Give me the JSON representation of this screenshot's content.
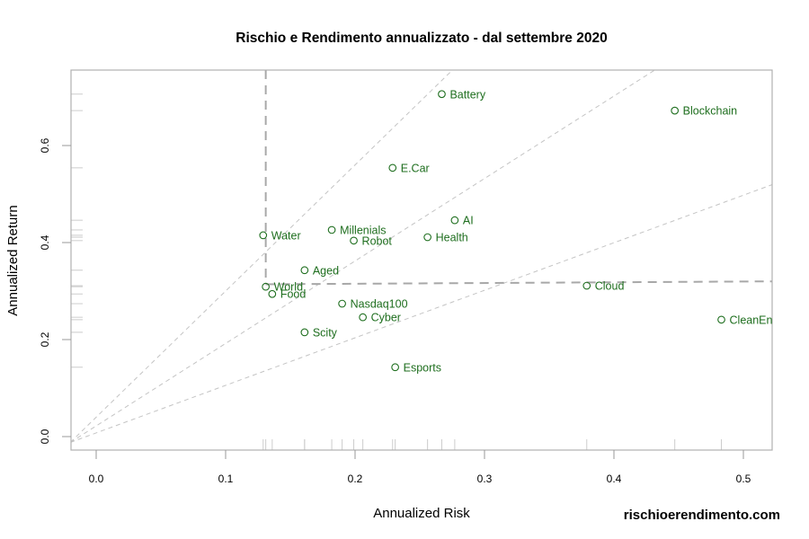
{
  "chart_data": {
    "type": "scatter",
    "title": "Rischio e Rendimento annualizzato - dal settembre 2020",
    "xlabel": "Annualized Risk",
    "ylabel": "Annualized Return",
    "xlim": [
      -0.02,
      0.522
    ],
    "ylim": [
      -0.028,
      0.755
    ],
    "x_ticks": [
      0.0,
      0.1,
      0.2,
      0.3,
      0.4,
      0.5
    ],
    "x_tick_labels": [
      "0.0",
      "0.1",
      "0.2",
      "0.3",
      "0.4",
      "0.5"
    ],
    "y_ticks": [
      0.0,
      0.2,
      0.4,
      0.6
    ],
    "y_tick_labels": [
      "0.0",
      "0.2",
      "0.4",
      "0.6"
    ],
    "grid": false,
    "legend": null,
    "points": [
      {
        "label": "Battery",
        "x": 0.267,
        "y": 0.706
      },
      {
        "label": "Blockchain",
        "x": 0.447,
        "y": 0.672
      },
      {
        "label": "E.Car",
        "x": 0.229,
        "y": 0.554
      },
      {
        "label": "AI",
        "x": 0.277,
        "y": 0.446
      },
      {
        "label": "Water",
        "x": 0.129,
        "y": 0.415
      },
      {
        "label": "Millenials",
        "x": 0.182,
        "y": 0.426
      },
      {
        "label": "Robot",
        "x": 0.199,
        "y": 0.404
      },
      {
        "label": "Health",
        "x": 0.256,
        "y": 0.411
      },
      {
        "label": "Aged",
        "x": 0.161,
        "y": 0.343
      },
      {
        "label": "World",
        "x": 0.131,
        "y": 0.309
      },
      {
        "label": "Food",
        "x": 0.136,
        "y": 0.294
      },
      {
        "label": "Cloud",
        "x": 0.379,
        "y": 0.311
      },
      {
        "label": "Nasdaq100",
        "x": 0.19,
        "y": 0.274
      },
      {
        "label": "Cyber",
        "x": 0.206,
        "y": 0.246
      },
      {
        "label": "CleanEn",
        "x": 0.483,
        "y": 0.241
      },
      {
        "label": "Scity",
        "x": 0.161,
        "y": 0.215
      },
      {
        "label": "Esports",
        "x": 0.231,
        "y": 0.143
      }
    ],
    "reference_lines": {
      "vertical_risk": 0.131,
      "horizontal_return_start": 0.314,
      "horizontal_return_end": 0.32,
      "slopes_from_origin": [
        2.6,
        1.7,
        0.98
      ]
    },
    "annotations": [
      "rischioerendimento.com"
    ]
  },
  "colors": {
    "points": "#1e6e1e",
    "labels": "#1e6e1e",
    "frame": "#b0b0b0",
    "reference_dashed": "#a8a8a8",
    "diagonal_dashed": "#c4c4c4",
    "rug": "#cccccc"
  },
  "watermark": "rischioerendimento.com"
}
